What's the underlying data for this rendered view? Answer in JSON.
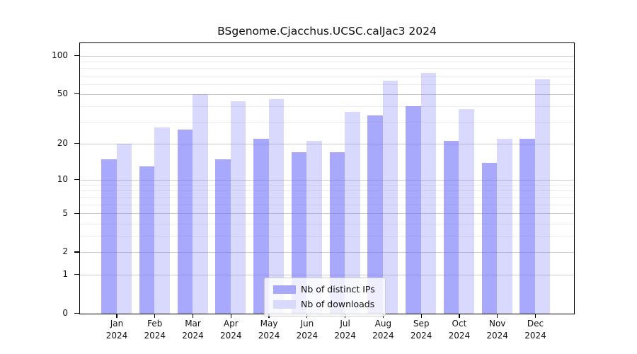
{
  "chart_data": {
    "type": "bar",
    "title": "BSgenome.Cjacchus.UCSC.calJac3 2024",
    "categories": [
      "Jan",
      "Feb",
      "Mar",
      "Apr",
      "May",
      "Jun",
      "Jul",
      "Aug",
      "Sep",
      "Oct",
      "Nov",
      "Dec"
    ],
    "year_label": "2024",
    "series": [
      {
        "name": "Nb of distinct IPs",
        "values": [
          15,
          13,
          26,
          15,
          22,
          17,
          17,
          34,
          40,
          21,
          14,
          22
        ],
        "fill": "rgba(110,110,250,0.60)",
        "swatch": "#a8a8fa"
      },
      {
        "name": "Nb of downloads",
        "values": [
          20,
          27,
          50,
          44,
          46,
          21,
          36,
          64,
          74,
          38,
          22,
          66
        ],
        "fill": "rgba(110,110,250,0.26)",
        "swatch": "#d9d9f9"
      }
    ],
    "y_axis": {
      "scale": "log1p",
      "tick_labels": [
        100,
        50,
        20,
        10,
        5,
        2,
        1,
        0
      ],
      "minor_ticks": [
        3,
        4,
        6,
        7,
        8,
        9,
        30,
        40,
        60,
        70,
        80,
        90
      ],
      "ylim": [
        0,
        126
      ]
    },
    "grid": true,
    "legend_position": "lower center",
    "colors": {
      "grid_major": "#c9c9c9",
      "grid_minor": "#ebebeb",
      "spine": "#000000"
    }
  }
}
